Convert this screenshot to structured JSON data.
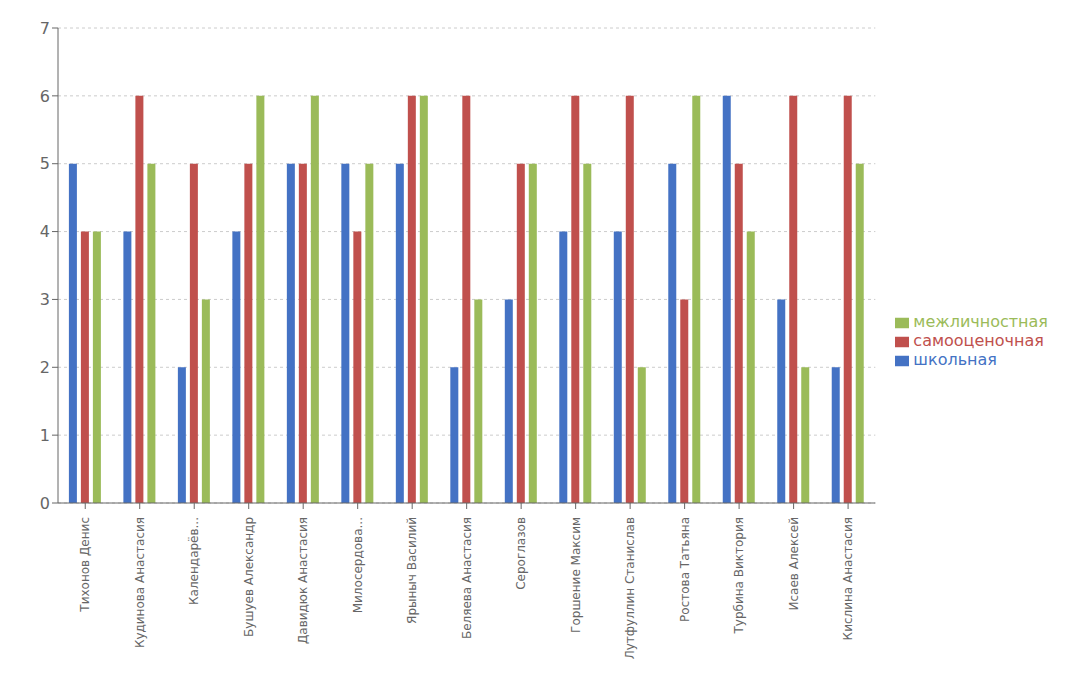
{
  "chart_data": {
    "type": "bar",
    "categories": [
      "Тихонов Денис",
      "Кудинова Анастасия",
      "Календарёв...",
      "Бушуев Александр",
      "Давидюк Анастасия",
      "Милосердова...",
      "Ярыныч Василий",
      "Беляева Анастасия",
      "Сероглазов",
      "Горшение Максим",
      "Лутфуллин Станислав",
      "Ростова Татьяна",
      "Турбина Виктория",
      "Исаев Алексей",
      "Кислина Анастасия"
    ],
    "series": [
      {
        "name": "школьная",
        "color": "#4472C4",
        "values": [
          5,
          4,
          2,
          4,
          5,
          5,
          5,
          2,
          3,
          4,
          4,
          5,
          6,
          3,
          2
        ]
      },
      {
        "name": "самооценочная",
        "color": "#C0504D",
        "values": [
          4,
          6,
          5,
          5,
          5,
          4,
          6,
          6,
          5,
          6,
          6,
          3,
          5,
          6,
          6
        ]
      },
      {
        "name": "межличностная",
        "color": "#9BBB59",
        "values": [
          4,
          5,
          3,
          6,
          6,
          5,
          6,
          3,
          5,
          5,
          2,
          6,
          4,
          2,
          5
        ]
      }
    ],
    "ylim": [
      0,
      7
    ],
    "yticks": [
      0,
      1,
      2,
      3,
      4,
      5,
      6,
      7
    ],
    "grid": true,
    "legend": "right"
  }
}
